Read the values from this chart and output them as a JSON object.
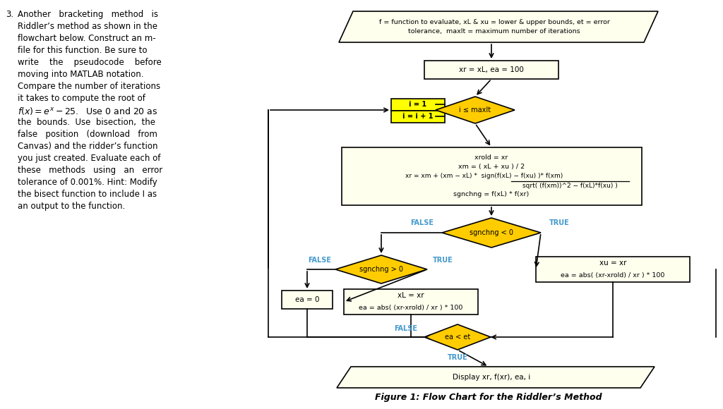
{
  "fig_width": 10.24,
  "fig_height": 5.8,
  "bg_color": "#ffffff",
  "box_fill": "#ffffee",
  "diamond_fill": "#ffcc00",
  "yellow_fill": "#ffff00",
  "border_color": "#000000",
  "true_false_color": "#4499cc",
  "node_input_line1": "f = function to evaluate, xL & xu = lower & upper bounds, et = error",
  "node_input_line2": "tolerance,  maxIt = maximum number of iterations",
  "node_init": "xr = xL, ea = 100",
  "node_loop_label1": "i = 1",
  "node_loop_label2": "i = i + 1",
  "node_loop_cond": "i ≤ maxIt",
  "node_calc_line1": "xrold = xr",
  "node_calc_line2": "xm = ( xL + xu ) / 2",
  "node_calc_line3": "xr = xm + (xm − xL) *  sign(f(xL) − f(xu) )* f(xm)",
  "node_calc_line4": "sqrt( (f(xm))^2 − f(xL)*f(xu) )",
  "node_calc_line5": "sgnchng = f(xL) * f(xr)",
  "node_d1": "sgnchng < 0",
  "node_d2": "sgnchng > 0",
  "node_ea0": "ea = 0",
  "node_xl_line1": "xL = xr",
  "node_xl_line2": "ea = abs( (xr-xrold) / xr ) * 100",
  "node_xu_line1": "xu = xr",
  "node_xu_line2": "ea = abs( (xr-xrold) / xr ) * 100",
  "node_d3": "ea < et",
  "node_output": "Display xr, f(xr), ea, i",
  "figure_caption": "Figure 1: Flow Chart for the Riddler’s Method",
  "left_para_num": "3.",
  "left_para_lines": [
    "Another   bracketing   method   is",
    "Riddler’s method as shown in the",
    "flowchart below. Construct an m-",
    "file for this function. Be sure to",
    "write    the    pseudocode    before",
    "moving into MATLAB notation.",
    "Compare the number of iterations",
    "it takes to compute the root of"
  ],
  "left_para_lines2": [
    "the  bounds.  Use  bisection,  the",
    "false   position   (download   from",
    "Canvas) and the ridder’s function",
    "you just created. Evaluate each of",
    "these   methods   using   an   error",
    "tolerance of 0.001%. Hint: Modify",
    "the bisect function to include I as",
    "an output to the function."
  ]
}
